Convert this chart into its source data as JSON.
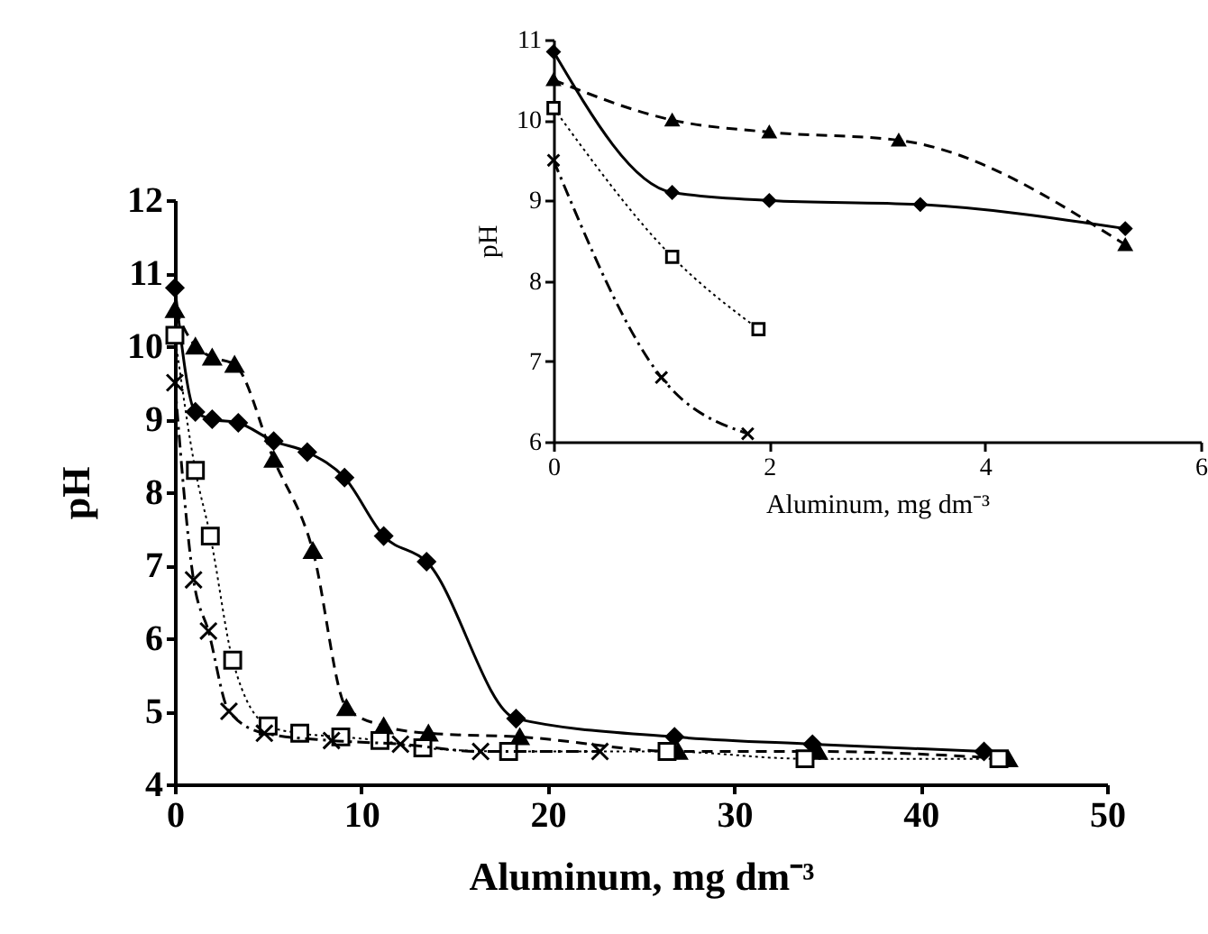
{
  "chart_data": [
    {
      "type": "line",
      "xlabel": "Aluminum, mg dm⁻³",
      "ylabel": "pH",
      "xlim": [
        0,
        50
      ],
      "ylim": [
        4,
        12
      ],
      "xticks": [
        0,
        10,
        20,
        30,
        40,
        50
      ],
      "yticks": [
        4,
        5,
        6,
        7,
        8,
        9,
        10,
        11,
        12
      ],
      "grid": false,
      "series": [
        {
          "color": "#000000",
          "marker": "diamond",
          "line_style": "solid",
          "x": [
            0,
            1.1,
            2.0,
            3.4,
            5.3,
            7.1,
            9.1,
            11.2,
            13.5,
            18.3,
            26.8,
            34.2,
            43.4
          ],
          "values": [
            10.8,
            9.1,
            9.0,
            8.95,
            8.7,
            8.55,
            8.2,
            7.4,
            7.05,
            4.9,
            4.65,
            4.55,
            4.45
          ]
        },
        {
          "color": "#000000",
          "marker": "triangle",
          "line_style": "dashed",
          "x": [
            0,
            1.1,
            2.0,
            3.2,
            5.3,
            7.4,
            9.2,
            11.2,
            13.6,
            18.5,
            27.0,
            34.5,
            44.7
          ],
          "values": [
            10.5,
            10.0,
            9.85,
            9.75,
            8.45,
            7.2,
            5.05,
            4.8,
            4.7,
            4.65,
            4.45,
            4.45,
            4.35
          ]
        },
        {
          "color": "#000000",
          "marker": "square",
          "line_style": "dotted",
          "x": [
            0,
            1.1,
            1.9,
            3.1,
            5.0,
            6.7,
            8.9,
            11.0,
            13.3,
            17.9,
            26.4,
            33.8,
            44.2
          ],
          "values": [
            10.15,
            8.3,
            7.4,
            5.7,
            4.8,
            4.7,
            4.65,
            4.6,
            4.5,
            4.45,
            4.45,
            4.35,
            4.35
          ]
        },
        {
          "color": "#000000",
          "marker": "cross",
          "line_style": "dashdot",
          "x": [
            0,
            1.0,
            1.8,
            2.9,
            4.8,
            8.4,
            12.1,
            16.4,
            22.8
          ],
          "values": [
            9.5,
            6.8,
            6.1,
            5.0,
            4.7,
            4.6,
            4.55,
            4.45,
            4.45
          ]
        }
      ]
    },
    {
      "type": "line",
      "xlabel": "Aluminum, mg dm⁻³",
      "ylabel": "pH",
      "xlim": [
        0,
        6
      ],
      "ylim": [
        6,
        11
      ],
      "xticks": [
        0,
        2,
        4,
        6
      ],
      "yticks": [
        6,
        7,
        8,
        9,
        10,
        11
      ],
      "grid": false,
      "series": [
        {
          "color": "#000000",
          "marker": "diamond",
          "line_style": "solid",
          "x": [
            0,
            1.1,
            2.0,
            3.4,
            5.3
          ],
          "values": [
            10.85,
            9.1,
            9.0,
            8.95,
            8.65
          ]
        },
        {
          "color": "#000000",
          "marker": "triangle",
          "line_style": "dashed",
          "x": [
            0,
            1.1,
            2.0,
            3.2,
            5.3
          ],
          "values": [
            10.5,
            10.0,
            9.85,
            9.75,
            8.45
          ]
        },
        {
          "color": "#000000",
          "marker": "square",
          "line_style": "dotted",
          "x": [
            0,
            1.1,
            1.9
          ],
          "values": [
            10.15,
            8.3,
            7.4
          ]
        },
        {
          "color": "#000000",
          "marker": "cross",
          "line_style": "dashdot",
          "x": [
            0,
            1.0,
            1.8
          ],
          "values": [
            9.5,
            6.8,
            6.1
          ]
        }
      ]
    }
  ]
}
